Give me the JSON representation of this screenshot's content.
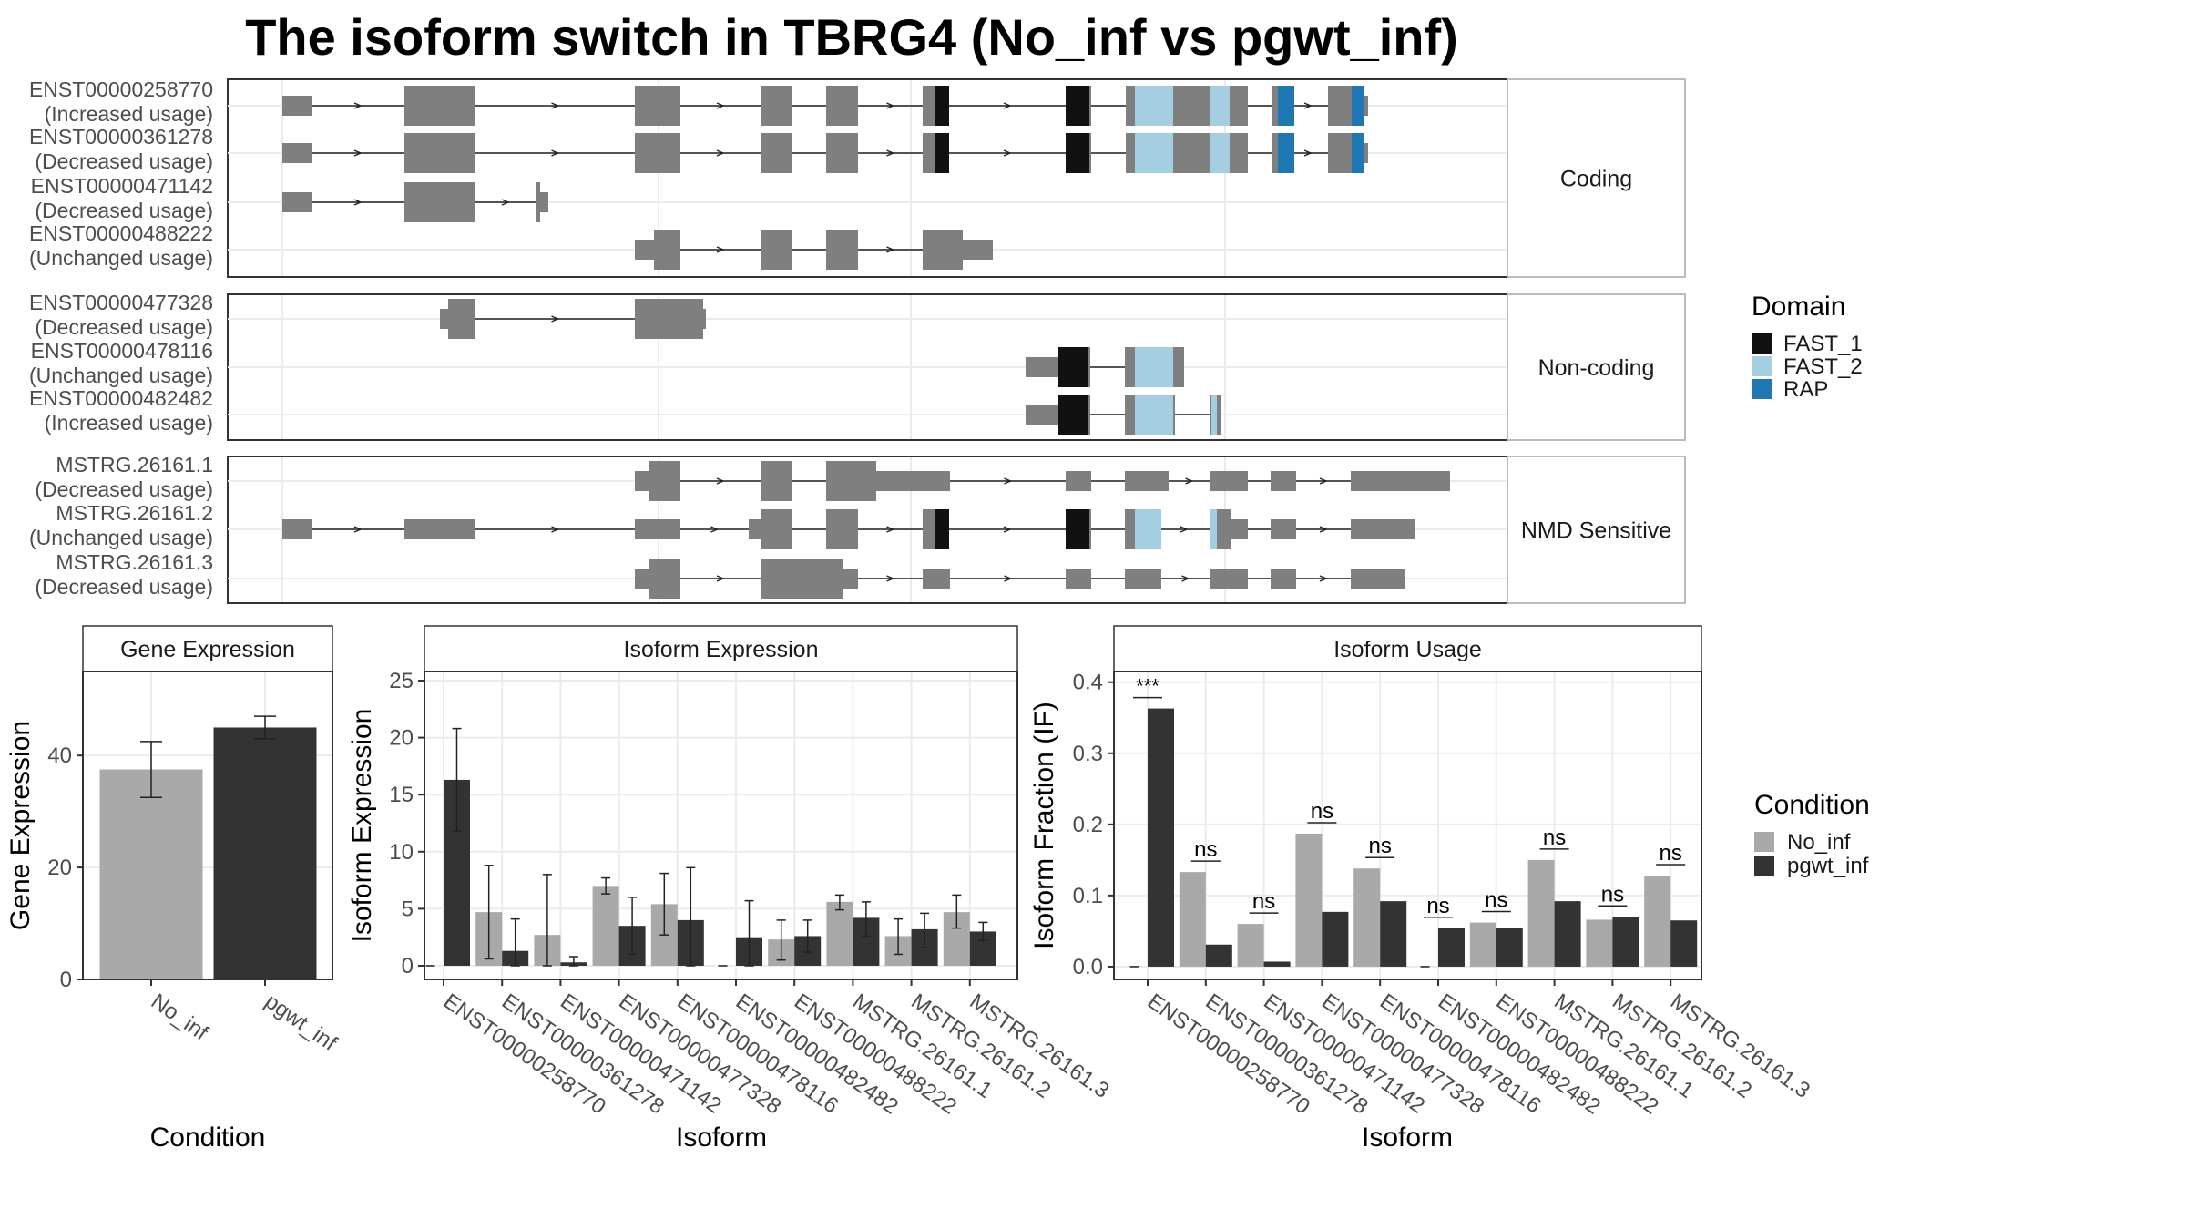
{
  "title": "The isoform switch in TBRG4 (No_inf vs pgwt_inf)",
  "colors": {
    "exon": "#7f7f7f",
    "grid": "#ebebeb",
    "no_inf": "#a9a9a9",
    "pgwt_inf": "#333333",
    "FAST_1": "#111111",
    "FAST_2": "#a6cee3",
    "RAP": "#1f78b4"
  },
  "panels": [
    {
      "label": "Coding",
      "tracks": [
        {
          "id": "ENST00000258770",
          "usage": "(Increased usage)"
        },
        {
          "id": "ENST00000361278",
          "usage": "(Decreased usage)"
        },
        {
          "id": "ENST00000471142",
          "usage": "(Decreased usage)"
        },
        {
          "id": "ENST00000488222",
          "usage": "(Unchanged usage)"
        }
      ]
    },
    {
      "label": "Non-coding",
      "tracks": [
        {
          "id": "ENST00000477328",
          "usage": "(Decreased usage)"
        },
        {
          "id": "ENST00000478116",
          "usage": "(Unchanged usage)"
        },
        {
          "id": "ENST00000482482",
          "usage": "(Increased usage)"
        }
      ]
    },
    {
      "label": "NMD Sensitive",
      "tracks": [
        {
          "id": "MSTRG.26161.1",
          "usage": "(Decreased usage)"
        },
        {
          "id": "MSTRG.26161.2",
          "usage": "(Unchanged usage)"
        },
        {
          "id": "MSTRG.26161.3",
          "usage": "(Decreased usage)"
        }
      ]
    }
  ],
  "legend_domain": {
    "title": "Domain",
    "items": [
      "FAST_1",
      "FAST_2",
      "RAP"
    ]
  },
  "legend_condition": {
    "title": "Condition",
    "items": [
      "No_inf",
      "pgwt_inf"
    ]
  },
  "chart_data": [
    {
      "type": "bar",
      "title": "Gene Expression",
      "xlabel": "Condition",
      "ylabel": "Gene Expression",
      "categories": [
        "No_inf",
        "pgwt_inf"
      ],
      "values": [
        37.5,
        45
      ],
      "errors": [
        [
          32.5,
          42.5
        ],
        [
          43,
          47
        ]
      ],
      "ylim": [
        0,
        55
      ],
      "yticks": [
        0,
        20,
        40
      ]
    },
    {
      "type": "bar",
      "title": "Isoform Expression",
      "xlabel": "Isoform",
      "ylabel": "Isoform Expression",
      "categories": [
        "ENST00000258770",
        "ENST00000361278",
        "ENST00000471142",
        "ENST00000477328",
        "ENST00000478116",
        "ENST00000482482",
        "ENST00000488222",
        "MSTRG.26161.1",
        "MSTRG.26161.2",
        "MSTRG.26161.3"
      ],
      "series": [
        {
          "name": "No_inf",
          "values": [
            0,
            4.7,
            2.7,
            7.0,
            5.4,
            0,
            2.3,
            5.6,
            2.6,
            4.7
          ],
          "errors": [
            [
              0,
              0
            ],
            [
              0.6,
              8.8
            ],
            [
              0,
              8.0
            ],
            [
              6.3,
              7.7
            ],
            [
              2.7,
              8.1
            ],
            [
              0,
              0
            ],
            [
              0.5,
              4.0
            ],
            [
              4.9,
              6.2
            ],
            [
              1.0,
              4.1
            ],
            [
              3.3,
              6.2
            ]
          ]
        },
        {
          "name": "pgwt_inf",
          "values": [
            16.3,
            1.3,
            0.3,
            3.5,
            4.0,
            2.5,
            2.6,
            4.2,
            3.2,
            3.0
          ],
          "errors": [
            [
              11.8,
              20.8
            ],
            [
              0,
              4.1
            ],
            [
              0,
              0.8
            ],
            [
              1.0,
              6.0
            ],
            [
              0,
              8.6
            ],
            [
              0,
              5.7
            ],
            [
              1.2,
              4.0
            ],
            [
              2.6,
              5.6
            ],
            [
              1.6,
              4.6
            ],
            [
              2.2,
              3.8
            ]
          ]
        }
      ],
      "ylim": [
        -1.2,
        25.8
      ],
      "yticks": [
        0,
        5,
        10,
        15,
        20,
        25
      ]
    },
    {
      "type": "bar",
      "title": "Isoform Usage",
      "xlabel": "Isoform",
      "ylabel": "Isoform Fraction (IF)",
      "categories": [
        "ENST00000258770",
        "ENST00000361278",
        "ENST00000471142",
        "ENST00000477328",
        "ENST00000478116",
        "ENST00000482482",
        "ENST00000488222",
        "MSTRG.26161.1",
        "MSTRG.26161.2",
        "MSTRG.26161.3"
      ],
      "series": [
        {
          "name": "No_inf",
          "values": [
            0,
            0.133,
            0.06,
            0.187,
            0.138,
            0,
            0.062,
            0.15,
            0.066,
            0.128
          ]
        },
        {
          "name": "pgwt_inf",
          "values": [
            0.363,
            0.031,
            0.007,
            0.077,
            0.092,
            0.054,
            0.055,
            0.092,
            0.07,
            0.065
          ]
        }
      ],
      "significance": [
        "***",
        "ns",
        "ns",
        "ns",
        "ns",
        "ns",
        "ns",
        "ns",
        "ns",
        "ns"
      ],
      "ylim": [
        -0.018,
        0.415
      ],
      "yticks": [
        0.0,
        0.1,
        0.2,
        0.3,
        0.4
      ]
    }
  ]
}
